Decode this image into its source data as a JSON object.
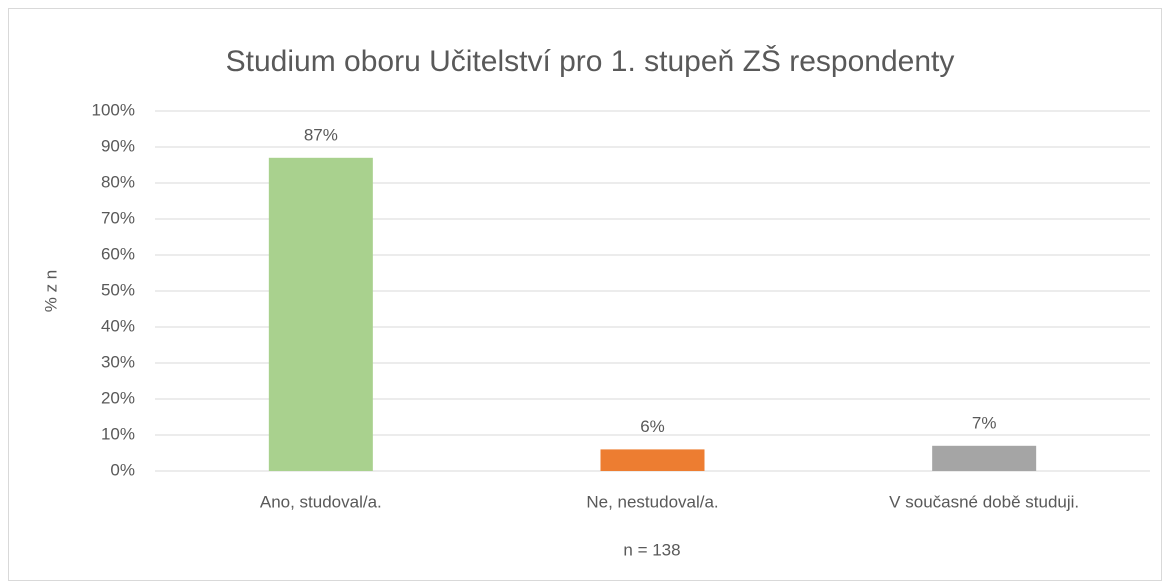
{
  "chart_data": {
    "type": "bar",
    "title": "Studium oboru Učitelství pro 1. stupeň ZŠ respondenty",
    "categories": [
      "Ano, studoval/a.",
      "Ne, nestudoval/a.",
      "V současné době studuji."
    ],
    "values": [
      87,
      6,
      7
    ],
    "value_labels": [
      "87%",
      "6%",
      "7%"
    ],
    "colors": [
      "#a9d18e",
      "#ed7d31",
      "#a5a5a5"
    ],
    "x_label": "n = 138",
    "y_label": "% z n",
    "ylim": [
      0,
      100
    ],
    "yticks": [
      {
        "value": 0,
        "label": "0%"
      },
      {
        "value": 10,
        "label": "10%"
      },
      {
        "value": 20,
        "label": "20%"
      },
      {
        "value": 30,
        "label": "30%"
      },
      {
        "value": 40,
        "label": "40%"
      },
      {
        "value": 50,
        "label": "50%"
      },
      {
        "value": 60,
        "label": "60%"
      },
      {
        "value": 70,
        "label": "70%"
      },
      {
        "value": 80,
        "label": "80%"
      },
      {
        "value": 90,
        "label": "90%"
      },
      {
        "value": 100,
        "label": "100%"
      }
    ],
    "grid": true
  }
}
